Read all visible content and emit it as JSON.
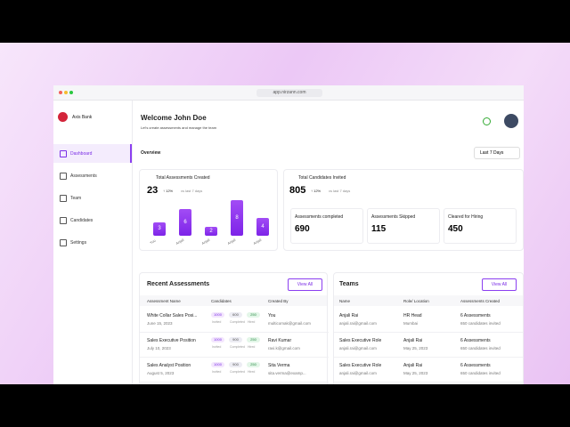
{
  "browser": {
    "url": "app.nirzann.com"
  },
  "sidebar": {
    "brand": "Axis Bank",
    "nav": [
      "Dashboard",
      "Assessments",
      "Team",
      "Candidates",
      "Settings"
    ]
  },
  "header": {
    "title": "Welcome John Doe",
    "subtitle": "Let's create assessments and manage the team"
  },
  "overview": {
    "title": "Overview",
    "range": "Last 7 Days",
    "assessments": {
      "title": "Total Assessments Created",
      "value": "23",
      "change": "↑ 12%",
      "compare": "vs last 7 days",
      "bars": [
        {
          "label": "You",
          "value": 3
        },
        {
          "label": "Anjali",
          "value": 6
        },
        {
          "label": "Anjali",
          "value": 2
        },
        {
          "label": "Anjali",
          "value": 8
        },
        {
          "label": "Anjali",
          "value": 4
        }
      ]
    },
    "candidates": {
      "title": "Total Candidates Invited",
      "value": "805",
      "change": "↑ 12%",
      "compare": "vs last 7 days",
      "stats": [
        {
          "label": "Assessments completed",
          "value": "690"
        },
        {
          "label": "Assessments Skipped",
          "value": "115"
        },
        {
          "label": "Cleared for Hiring",
          "value": "450"
        }
      ]
    }
  },
  "recent": {
    "title": "Recent Assessments",
    "action": "View All",
    "columns": [
      "Assessment Name",
      "Candidates",
      "Created By"
    ],
    "count_labels": [
      "Invited",
      "Completed",
      "Hired"
    ],
    "rows": [
      {
        "name": "White Collar Sales Posi...",
        "date": "June 15, 2023",
        "counts": [
          "1000",
          "600",
          "250"
        ],
        "creator": "You",
        "email": "multicomak@gmail.com"
      },
      {
        "name": "Sales Executive Position",
        "date": "July 10, 2023",
        "counts": [
          "1000",
          "900",
          "250"
        ],
        "creator": "Ravi Kumar",
        "email": "ravi.k@gmail.com"
      },
      {
        "name": "Sales Analyst Position",
        "date": "August 5, 2023",
        "counts": [
          "1000",
          "900",
          "250"
        ],
        "creator": "Sita Verma",
        "email": "sita.verma@examp..."
      }
    ]
  },
  "teams": {
    "title": "Teams",
    "action": "View All",
    "columns": [
      "Name",
      "Role/ Location",
      "Assessments Created"
    ],
    "rows": [
      {
        "name": "Anjali Rai",
        "email": "anjali.rai@gmail.com",
        "role": "HR Head",
        "location": "Mumbai",
        "assessments": "6 Assessments",
        "invited": "650 candidates invited"
      },
      {
        "name": "Sales Executive Role",
        "email": "anjali.rai@gmail.com",
        "role": "Anjali Rai",
        "location": "May 25, 2023",
        "assessments": "6 Assessments",
        "invited": "650 candidates invited"
      },
      {
        "name": "Sales Executive Role",
        "email": "anjali.rai@gmail.com",
        "role": "Anjali Rai",
        "location": "May 25, 2023",
        "assessments": "6 Assessments",
        "invited": "650 candidates invited"
      }
    ]
  }
}
